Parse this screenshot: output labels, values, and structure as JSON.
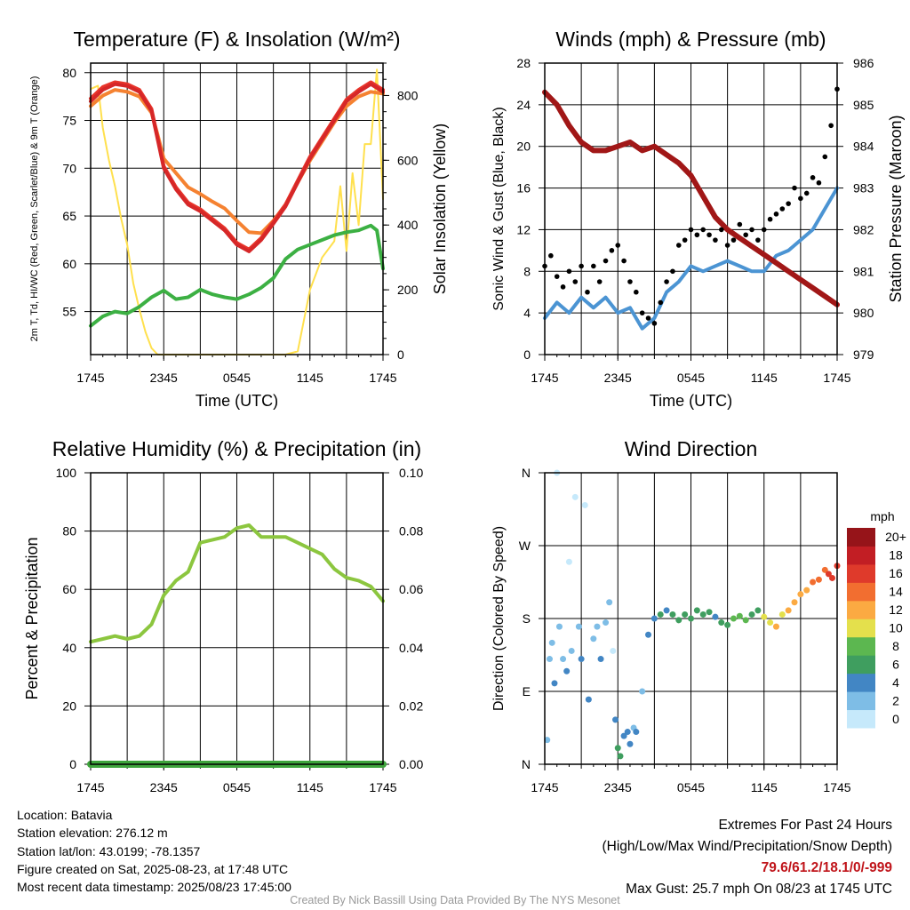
{
  "colors": {
    "temp": "#d62728",
    "hiwc": "#e8352b",
    "t9m": "#f58231",
    "dew": "#3cb043",
    "solar": "#ffe04d",
    "wind": "#4b94d3",
    "gust": "#000000",
    "pressure": "#a11717",
    "rh": "#8cc63f",
    "precip": "#3ea43c"
  },
  "text": {
    "credit": "Created By Nick Bassill Using Data Provided By The NYS Mesonet",
    "colorbar_unit": "mph"
  },
  "info": {
    "location": "Location: Batavia",
    "elevation": "Station elevation: 276.12 m",
    "latlon": "Station lat/lon: 43.0199; -78.1357",
    "created": "Figure created on Sat, 2025-08-23, at 17:48 UTC",
    "recent": "Most recent data timestamp: 2025/08/23 17:45:00"
  },
  "extremes": {
    "title": "Extremes For Past 24 Hours",
    "legend": "(High/Low/Max Wind/Precipitation/Snow Depth)",
    "values": "79.6/61.2/18.1/0/-999",
    "gust": "Max Gust: 25.7 mph On 08/23 at 1745 UTC"
  },
  "chart_data": [
    {
      "id": "temp",
      "type": "line",
      "title": "Temperature (F) & Insolation (W/m²)",
      "xlabel": "Time (UTC)",
      "ylabel": "2m T, Td, HI/WC (Red, Green, Scarlet/Blue) & 9m T (Orange)",
      "y2label": "Solar Insolation (Yellow)",
      "x_ticks": [
        "1745",
        "2345",
        "0545",
        "1145",
        "1745"
      ],
      "x_hours": [
        0,
        24
      ],
      "ylim": [
        50.5,
        81
      ],
      "y_ticks": [
        55,
        60,
        65,
        70,
        75,
        80
      ],
      "y2lim": [
        0,
        900
      ],
      "y2_ticks": [
        0,
        200,
        400,
        600,
        800
      ],
      "series": [
        {
          "key": "temp",
          "x": [
            0,
            1,
            2,
            3,
            4,
            5,
            5.5,
            6,
            7,
            8,
            9,
            10,
            11,
            12,
            13,
            14,
            15,
            16,
            17,
            18,
            19,
            20,
            21,
            22,
            23,
            24
          ],
          "y": [
            77,
            78.2,
            78.8,
            78.6,
            78,
            76,
            73,
            70,
            67.8,
            66.2,
            65.5,
            64.5,
            63.5,
            62,
            61.3,
            62.5,
            64.2,
            66,
            68.5,
            71,
            73,
            75,
            77,
            78,
            78.8,
            78
          ]
        },
        {
          "key": "hiwc",
          "x": [
            0,
            1,
            2,
            3,
            4,
            5,
            5.5,
            6,
            7,
            8,
            9,
            10,
            11,
            12,
            13,
            14,
            15,
            16,
            17,
            18,
            19,
            20,
            21,
            22,
            23,
            24
          ],
          "y": [
            77.3,
            78.5,
            79,
            78.8,
            78.2,
            76.2,
            73.2,
            70.2,
            68,
            66.4,
            65.7,
            64.7,
            63.7,
            62.2,
            61.5,
            62.7,
            64.4,
            66.2,
            68.7,
            71.2,
            73.2,
            75.2,
            77.2,
            78.2,
            79,
            78.2
          ]
        },
        {
          "key": "t9m",
          "x": [
            0,
            1,
            2,
            3,
            4,
            5,
            5.5,
            6,
            7,
            8,
            9,
            10,
            11,
            12,
            13,
            14,
            15,
            16,
            17,
            18,
            19,
            20,
            21,
            22,
            23,
            24
          ],
          "y": [
            76.5,
            77.6,
            78.2,
            78,
            77.5,
            75.8,
            73.5,
            71,
            69.5,
            68,
            67.3,
            66.5,
            65.8,
            64.5,
            63.3,
            63.2,
            64.5,
            66.2,
            68.5,
            70.8,
            72.8,
            74.8,
            76.5,
            77.5,
            78,
            77.8
          ]
        },
        {
          "key": "dew",
          "x": [
            0,
            1,
            2,
            3,
            4,
            5,
            6,
            7,
            8,
            9,
            10,
            11,
            12,
            13,
            14,
            15,
            16,
            17,
            18,
            19,
            20,
            21,
            22,
            23,
            23.5,
            24
          ],
          "y": [
            53.5,
            54.5,
            55,
            54.8,
            55.5,
            56.5,
            57.2,
            56.3,
            56.5,
            57.3,
            56.8,
            56.5,
            56.3,
            56.8,
            57.5,
            58.5,
            60.5,
            61.5,
            62,
            62.5,
            63,
            63.3,
            63.5,
            64,
            63.5,
            59.5
          ]
        },
        {
          "key": "solar",
          "x": [
            0,
            0.6,
            1,
            1.5,
            2,
            2.5,
            3,
            3.5,
            4,
            4.5,
            5,
            5.5,
            6,
            7,
            8,
            9,
            10,
            11,
            12,
            13,
            14,
            16,
            17,
            18,
            19,
            20,
            20.5,
            21,
            21.5,
            22,
            22.5,
            23,
            23.5,
            24
          ],
          "y": [
            820,
            830,
            700,
            600,
            520,
            420,
            340,
            220,
            140,
            70,
            20,
            0,
            0,
            0,
            0,
            0,
            0,
            0,
            0,
            0,
            0,
            0,
            10,
            200,
            300,
            350,
            520,
            320,
            560,
            400,
            650,
            650,
            880,
            480
          ]
        }
      ]
    },
    {
      "id": "wind",
      "type": "line",
      "title": "Winds (mph) & Pressure (mb)",
      "xlabel": "Time (UTC)",
      "ylabel": "Sonic Wind & Gust (Blue, Black)",
      "y2label": "Station Pressure (Maroon)",
      "x_ticks": [
        "1745",
        "2345",
        "0545",
        "1145",
        "1745"
      ],
      "x_hours": [
        0,
        24
      ],
      "ylim": [
        0,
        28
      ],
      "y_ticks": [
        0,
        4,
        8,
        12,
        16,
        20,
        24,
        28
      ],
      "y2lim": [
        979,
        986
      ],
      "y2_ticks": [
        979,
        980,
        981,
        982,
        983,
        984,
        985,
        986
      ],
      "series": [
        {
          "key": "wind",
          "x": [
            0,
            1,
            2,
            3,
            4,
            5,
            6,
            7,
            7.5,
            8,
            9,
            10,
            11,
            12,
            13,
            14,
            15,
            16,
            17,
            18,
            19,
            20,
            21,
            22,
            23,
            24
          ],
          "y": [
            3.5,
            5,
            4,
            5.5,
            4.5,
            5.5,
            4,
            4.5,
            3.5,
            2.5,
            3.5,
            6,
            7,
            8.5,
            8,
            8.5,
            9,
            8.5,
            8,
            8,
            9.5,
            10,
            11,
            12,
            14,
            16
          ]
        },
        {
          "key": "gust",
          "type": "scatter",
          "x": [
            0,
            0.5,
            1,
            1.5,
            2,
            2.5,
            3,
            3.5,
            4,
            4.5,
            5,
            5.5,
            6,
            6.5,
            7,
            7.5,
            8,
            8.5,
            9,
            9.5,
            10,
            10.5,
            11,
            11.5,
            12,
            12.5,
            13,
            13.5,
            14,
            14.5,
            15,
            15.5,
            16,
            16.5,
            17,
            17.5,
            18,
            18.5,
            19,
            19.5,
            20,
            20.5,
            21,
            21.5,
            22,
            22.5,
            23,
            23.5,
            24
          ],
          "y": [
            8.5,
            9.5,
            7.5,
            6.5,
            8,
            7,
            8.5,
            6,
            8.5,
            7,
            9,
            10,
            10.5,
            9,
            7,
            6,
            4,
            3.5,
            3,
            5,
            7,
            8,
            10.5,
            11,
            12,
            11.5,
            12,
            11.5,
            11,
            12,
            10.5,
            11,
            12.5,
            11.5,
            12,
            11,
            12,
            13,
            13.5,
            14,
            14.5,
            16,
            15,
            15.5,
            17,
            16.5,
            19,
            22,
            25.5
          ]
        },
        {
          "key": "pressure",
          "axis": "y2",
          "x": [
            0,
            1,
            2,
            3,
            4,
            5,
            6,
            7,
            8,
            9,
            10,
            11,
            12,
            13,
            14,
            15,
            16,
            17,
            18,
            19,
            20,
            21,
            22,
            23,
            24
          ],
          "y": [
            985.3,
            985,
            984.5,
            984.1,
            983.9,
            983.9,
            984,
            984.1,
            983.9,
            984,
            983.8,
            983.6,
            983.3,
            982.8,
            982.3,
            982,
            981.8,
            981.6,
            981.4,
            981.2,
            981,
            980.8,
            980.6,
            980.4,
            980.2
          ]
        }
      ]
    },
    {
      "id": "rh",
      "type": "line",
      "title": "Relative Humidity (%) & Precipitation (in)",
      "xlabel": "",
      "ylabel": "Percent & Precipitation",
      "x_ticks": [
        "1745",
        "2345",
        "0545",
        "1145",
        "1745"
      ],
      "x_hours": [
        0,
        24
      ],
      "ylim": [
        0,
        100
      ],
      "y_ticks": [
        0,
        20,
        40,
        60,
        80,
        100
      ],
      "y2lim": [
        0,
        0.1
      ],
      "y2_ticks": [
        "0.00",
        "0.02",
        "0.04",
        "0.06",
        "0.08",
        "0.10"
      ],
      "series": [
        {
          "key": "rh",
          "x": [
            0,
            1,
            2,
            3,
            4,
            5,
            6,
            7,
            8,
            9,
            10,
            11,
            12,
            13,
            14,
            15,
            16,
            17,
            18,
            19,
            20,
            21,
            22,
            23,
            24
          ],
          "y": [
            42,
            43,
            44,
            43,
            44,
            48,
            58,
            63,
            66,
            76,
            77,
            78,
            81,
            82,
            78,
            78,
            78,
            76,
            74,
            72,
            67,
            64,
            63,
            61,
            56
          ]
        },
        {
          "key": "precip",
          "axis": "y2",
          "x": [
            0,
            24
          ],
          "y": [
            0,
            0
          ]
        }
      ]
    },
    {
      "id": "dir",
      "type": "scatter",
      "title": "Wind Direction",
      "xlabel": "",
      "ylabel": "Direction (Colored By Speed)",
      "x_ticks": [
        "1745",
        "2345",
        "0545",
        "1145",
        "1745"
      ],
      "x_hours": [
        0,
        24
      ],
      "ylim": [
        0,
        360
      ],
      "y_ticks": [
        "N",
        "E",
        "S",
        "W",
        "N"
      ],
      "colorbar": {
        "labels": [
          "0",
          "2",
          "4",
          "6",
          "8",
          "10",
          "12",
          "14",
          "16",
          "18",
          "20+"
        ],
        "colors": [
          "#c6e9fb",
          "#7ebde6",
          "#4286c4",
          "#3f9e5f",
          "#5cb750",
          "#e4e04c",
          "#fbaa42",
          "#f26e30",
          "#df3a2b",
          "#c21e24",
          "#961419"
        ]
      },
      "series": [
        {
          "x": [
            0.2,
            0.4,
            0.6,
            0.8,
            1.0,
            1.2,
            1.5,
            1.8,
            2.0,
            2.2,
            2.5,
            2.8,
            3.0,
            3.3,
            3.6,
            4.0,
            4.3,
            4.6,
            5.0,
            5.3,
            5.6,
            5.8,
            6.0,
            6.2,
            6.5,
            6.8,
            7.0,
            7.3,
            7.5,
            8.0,
            8.5,
            9,
            9.5,
            10,
            10.5,
            11,
            11.5,
            12,
            12.5,
            13,
            13.5,
            14,
            14.5,
            15,
            15.5,
            16,
            16.5,
            17,
            17.5,
            18,
            18.5,
            19,
            19.5,
            20,
            20.5,
            21,
            21.5,
            22,
            22.5,
            23,
            23.3,
            23.6,
            24
          ],
          "y": [
            30,
            130,
            150,
            100,
            360,
            170,
            130,
            115,
            250,
            140,
            330,
            170,
            130,
            320,
            80,
            155,
            170,
            130,
            175,
            200,
            140,
            55,
            20,
            10,
            35,
            40,
            25,
            45,
            40,
            90,
            160,
            180,
            185,
            190,
            185,
            178,
            185,
            180,
            190,
            185,
            188,
            182,
            175,
            172,
            180,
            183,
            178,
            185,
            190,
            182,
            175,
            170,
            185,
            190,
            200,
            210,
            215,
            225,
            228,
            240,
            235,
            230,
            245
          ],
          "s": [
            2,
            3,
            3,
            4,
            1,
            2,
            3,
            4,
            1,
            3,
            1,
            2,
            4,
            1,
            4,
            2,
            3,
            4,
            3,
            2,
            1,
            4,
            7,
            6,
            5,
            4,
            4,
            3,
            4,
            3,
            4,
            5,
            6,
            5,
            6,
            7,
            6,
            7,
            6,
            7,
            6,
            5,
            6,
            7,
            8,
            8,
            8,
            6,
            7,
            10,
            11,
            12,
            11,
            12,
            13,
            13,
            12,
            14,
            15,
            15,
            16,
            17,
            17
          ]
        }
      ]
    }
  ]
}
